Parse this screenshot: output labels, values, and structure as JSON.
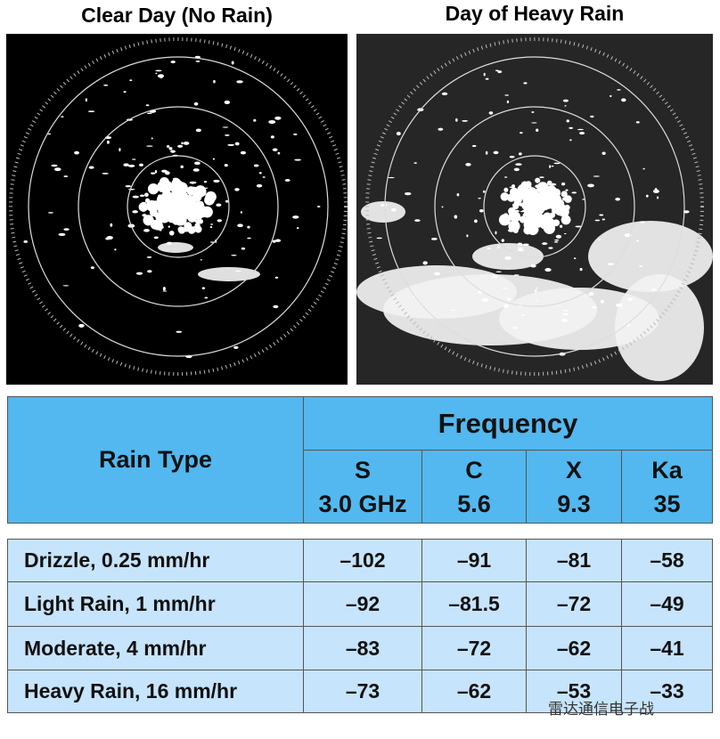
{
  "titles": [
    "Clear Day (No Rain)",
    "Day of Heavy Rain"
  ],
  "table": {
    "header": {
      "rain_type": "Rain Type",
      "frequency": "Frequency",
      "bands": [
        {
          "band": "S",
          "freq": "3.0 GHz"
        },
        {
          "band": "C",
          "freq": "5.6"
        },
        {
          "band": "X",
          "freq": "9.3"
        },
        {
          "band": "Ka",
          "freq": "35"
        }
      ]
    },
    "rows": [
      {
        "label": "Drizzle, 0.25 mm/hr",
        "values": [
          "–102",
          "–91",
          "–81",
          "–58"
        ]
      },
      {
        "label": "Light Rain, 1 mm/hr",
        "values": [
          "–92",
          "–81.5",
          "–72",
          "–49"
        ]
      },
      {
        "label": "Moderate, 4 mm/hr",
        "values": [
          "–83",
          "–72",
          "–62",
          "–41"
        ]
      },
      {
        "label": "Heavy Rain, 16 mm/hr",
        "values": [
          "–73",
          "–62",
          "–53",
          "–33"
        ]
      }
    ]
  },
  "watermark": "雷达通信电子战"
}
